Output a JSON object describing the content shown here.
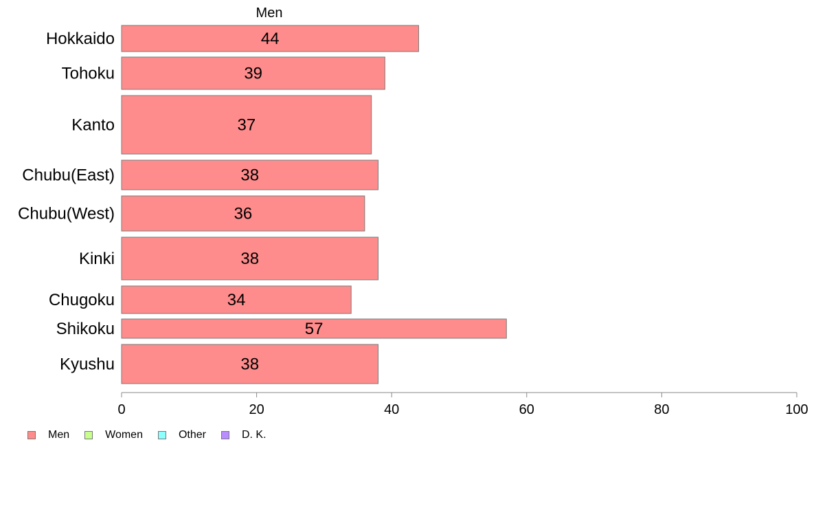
{
  "chart_data": {
    "type": "bar",
    "orientation": "horizontal",
    "title": "Men",
    "categories": [
      "Hokkaido",
      "Tohoku",
      "Kanto",
      "Chubu(East)",
      "Chubu(West)",
      "Kinki",
      "Chugoku",
      "Shikoku",
      "Kyushu"
    ],
    "series": [
      {
        "name": "Men",
        "values": [
          44,
          39,
          37,
          38,
          36,
          38,
          34,
          57,
          38
        ],
        "color": "#ff8c8c"
      }
    ],
    "xlim": [
      0,
      100
    ],
    "xticks": [
      0,
      20,
      40,
      60,
      80,
      100
    ],
    "grid": false,
    "legend_position": "bottom-left",
    "legend": [
      {
        "label": "Men",
        "color": "#ff8c8c"
      },
      {
        "label": "Women",
        "color": "#c8ff8c"
      },
      {
        "label": "Other",
        "color": "#8cffff"
      },
      {
        "label": "D. K.",
        "color": "#b98cff"
      }
    ]
  }
}
